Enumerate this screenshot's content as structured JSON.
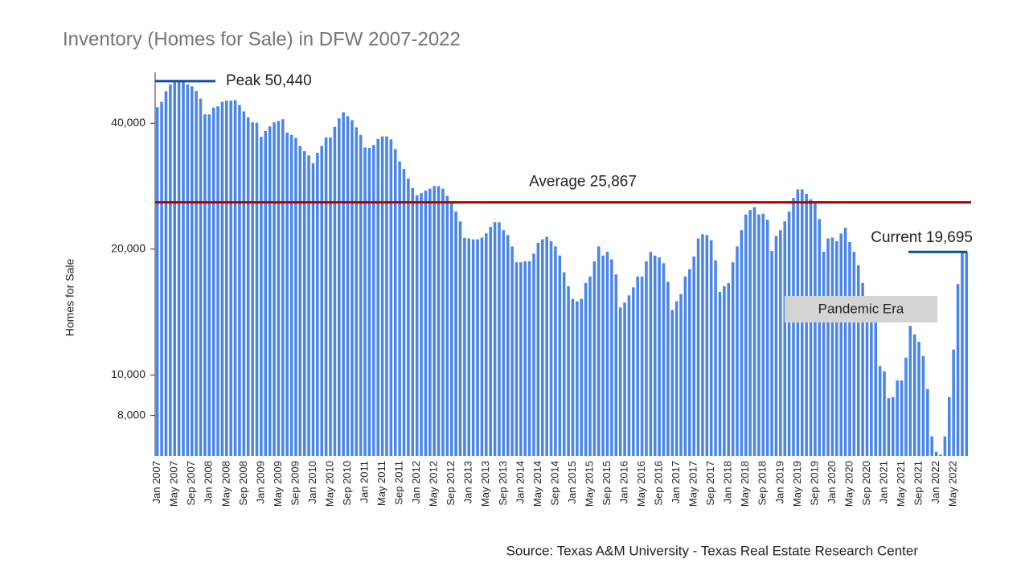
{
  "chart_data": {
    "type": "bar",
    "title": "Inventory (Homes for Sale) in DFW 2007-2022",
    "y_label": "Homes for Sale",
    "source": "Source: Texas A&M University - Texas Real Estate Research Center",
    "color": "#4a86e8",
    "log_y": true,
    "grid": false,
    "ylim": [
      6400,
      52000
    ],
    "yticks": [
      {
        "value": 8000,
        "label": "8,000"
      },
      {
        "value": 10000,
        "label": "10,000"
      },
      {
        "value": 20000,
        "label": "20,000"
      },
      {
        "value": 40000,
        "label": "40,000"
      }
    ],
    "peak": {
      "label": "Peak 50,440",
      "value": 50440,
      "color": "#0b4ea2"
    },
    "average": {
      "label": "Average 25,867",
      "value": 25867,
      "color": "#b00000"
    },
    "current": {
      "label": "Current 19,695",
      "value": 19695,
      "color": "#0b4ea2"
    },
    "region_label": "Pandemic Era",
    "categories": [
      "Jan 2007",
      null,
      null,
      null,
      "May 2007",
      null,
      null,
      null,
      "Sep 2007",
      null,
      null,
      null,
      "Jan 2008",
      null,
      null,
      null,
      "May 2008",
      null,
      null,
      null,
      "Sep 2008",
      null,
      null,
      null,
      "Jan 2009",
      null,
      null,
      null,
      "May 2009",
      null,
      null,
      null,
      "Sep 2009",
      null,
      null,
      null,
      "Jan 2010",
      null,
      null,
      null,
      "May 2010",
      null,
      null,
      null,
      "Sep 2010",
      null,
      null,
      null,
      "Jan 2011",
      null,
      null,
      null,
      "May 2011",
      null,
      null,
      null,
      "Sep 2011",
      null,
      null,
      null,
      "Jan 2012",
      null,
      null,
      null,
      "May 2012",
      null,
      null,
      null,
      "Sep 2012",
      null,
      null,
      null,
      "Jan 2013",
      null,
      null,
      null,
      "May 2013",
      null,
      null,
      null,
      "Sep 2013",
      null,
      null,
      null,
      "Jan 2014",
      null,
      null,
      null,
      "May 2014",
      null,
      null,
      null,
      "Sep 2014",
      null,
      null,
      null,
      "Jan 2015",
      null,
      null,
      null,
      "May 2015",
      null,
      null,
      null,
      "Sep 2015",
      null,
      null,
      null,
      "Jan 2016",
      null,
      null,
      null,
      "May 2016",
      null,
      null,
      null,
      "Sep 2016",
      null,
      null,
      null,
      "Jan 2017",
      null,
      null,
      null,
      "May 2017",
      null,
      null,
      null,
      "Sep 2017",
      null,
      null,
      null,
      "Jan 2018",
      null,
      null,
      null,
      "May 2018",
      null,
      null,
      null,
      "Sep 2018",
      null,
      null,
      null,
      "Jan 2019",
      null,
      null,
      null,
      "May 2019",
      null,
      null,
      null,
      "Sep 2019",
      null,
      null,
      null,
      "Jan 2020",
      null,
      null,
      null,
      "May 2020",
      null,
      null,
      null,
      "Sep 2020",
      null,
      null,
      null,
      "Jan 2021",
      null,
      null,
      null,
      "May 2021",
      null,
      null,
      null,
      "Sep 2021",
      null,
      null,
      null,
      "Jan 2022",
      null,
      null,
      null,
      "May 2022",
      null,
      null,
      null
    ],
    "values": [
      43700,
      45000,
      47700,
      49500,
      50100,
      50440,
      50200,
      49500,
      49000,
      47800,
      45800,
      42000,
      42000,
      43600,
      43900,
      45000,
      45300,
      45300,
      45400,
      44200,
      42700,
      41300,
      40200,
      40100,
      37100,
      38300,
      39300,
      40200,
      40500,
      40900,
      38000,
      37500,
      36900,
      35300,
      34300,
      33500,
      32100,
      34000,
      35300,
      37000,
      37000,
      39200,
      41100,
      42500,
      41600,
      40700,
      39100,
      37500,
      35000,
      34900,
      35500,
      36700,
      37200,
      37200,
      36600,
      34700,
      32400,
      31100,
      29500,
      28000,
      26900,
      27200,
      27600,
      27900,
      28300,
      28300,
      27900,
      26800,
      25900,
      24600,
      23300,
      21270,
      21200,
      21100,
      21100,
      21300,
      21800,
      22600,
      23200,
      23200,
      22200,
      21600,
      20300,
      18600,
      18600,
      18700,
      18700,
      19500,
      20700,
      21100,
      21400,
      20900,
      20300,
      19300,
      17600,
      16300,
      15200,
      15000,
      15200,
      16600,
      17200,
      18700,
      20300,
      19300,
      19700,
      18900,
      17400,
      14500,
      14900,
      15500,
      16200,
      17200,
      17200,
      18700,
      19700,
      19300,
      19100,
      18500,
      16700,
      14300,
      15000,
      15600,
      17200,
      17900,
      19200,
      21200,
      21700,
      21600,
      21000,
      18800,
      15800,
      16300,
      16600,
      18600,
      20300,
      22200,
      24200,
      24800,
      25200,
      24200,
      24300,
      23500,
      19800,
      21500,
      22200,
      23300,
      24600,
      26500,
      27800,
      27800,
      27100,
      26300,
      25800,
      23600,
      19700,
      21200,
      21300,
      20900,
      21800,
      22500,
      20800,
      19700,
      18300,
      16600,
      15400,
      14500,
      13500,
      10500,
      10200,
      8800,
      8850,
      9700,
      9700,
      11000,
      13100,
      12500,
      12000,
      11100,
      9250,
      7130,
      6550,
      6450,
      7130,
      8850,
      11500,
      16500,
      19800,
      19695
    ]
  }
}
